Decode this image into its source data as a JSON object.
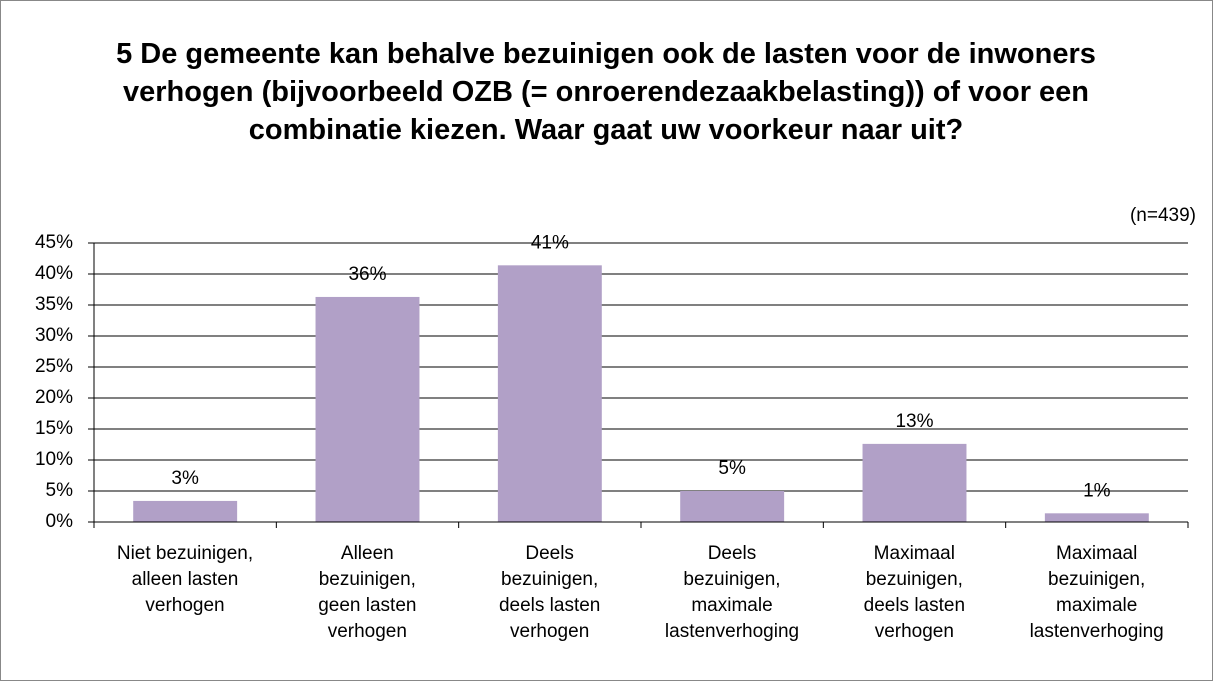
{
  "chart_data": {
    "type": "bar",
    "title": "5 De gemeente kan behalve bezuinigen ook de lasten voor de inwoners verhogen (bijvoorbeeld OZB (= onroerendezaakbelasting)) of voor een combinatie kiezen. Waar gaat uw voorkeur naar uit?",
    "annotation": "(n=439)",
    "categories": [
      "Niet bezuinigen,\nalleen lasten\nverhogen",
      "Alleen\nbezuinigen,\ngeen lasten\nverhogen",
      "Deels\nbezuinigen,\ndeels lasten\nverhogen",
      "Deels\nbezuinigen,\nmaximale\nlastenverhoging",
      "Maximaal\nbezuinigen,\ndeels lasten\nverhogen",
      "Maximaal\nbezuinigen,\nmaximale\nlastenverhoging"
    ],
    "values": [
      3.4,
      36.3,
      41.4,
      5.0,
      12.6,
      1.4
    ],
    "value_labels": [
      "3%",
      "36%",
      "41%",
      "5%",
      "13%",
      "1%"
    ],
    "color": "#b1a0c7",
    "ylim": [
      0,
      45
    ],
    "yticks": [
      {
        "value": 0,
        "label": "0%"
      },
      {
        "value": 5,
        "label": "5%"
      },
      {
        "value": 10,
        "label": "10%"
      },
      {
        "value": 15,
        "label": "15%"
      },
      {
        "value": 20,
        "label": "20%"
      },
      {
        "value": 25,
        "label": "25%"
      },
      {
        "value": 30,
        "label": "30%"
      },
      {
        "value": 35,
        "label": "35%"
      },
      {
        "value": 40,
        "label": "40%"
      },
      {
        "value": 45,
        "label": "45%"
      }
    ],
    "grid": true
  }
}
